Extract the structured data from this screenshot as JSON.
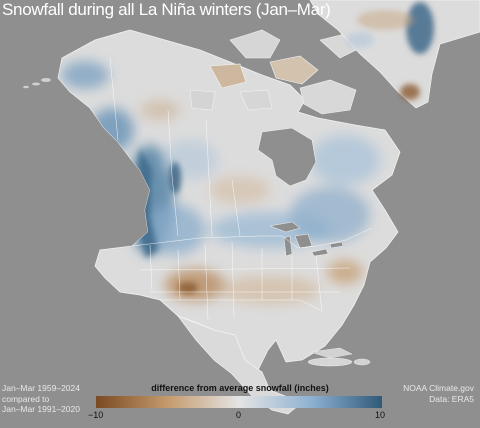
{
  "title": "Snowfall during all La Niña winters (Jan–Mar)",
  "map": {
    "region": "North America",
    "variable": "difference from average snowfall",
    "ocean_color": "#8f8f8f",
    "land_neutral_color": "#dcdcdc",
    "border_color": "#ffffff"
  },
  "footer_left": [
    "Jan–Mar 1959–2024",
    "compared to",
    "Jan–Mar 1991–2020"
  ],
  "footer_right": [
    "NOAA Climate.gov",
    "Data: ERA5"
  ],
  "legend": {
    "title": "difference from average snowfall (inches)",
    "min_label": "−10",
    "mid_label": "0",
    "max_label": "10",
    "colors": [
      "#7a4a22",
      "#c49a6c",
      "#e4e4e4",
      "#8fb2d2",
      "#2f5a78"
    ]
  }
}
